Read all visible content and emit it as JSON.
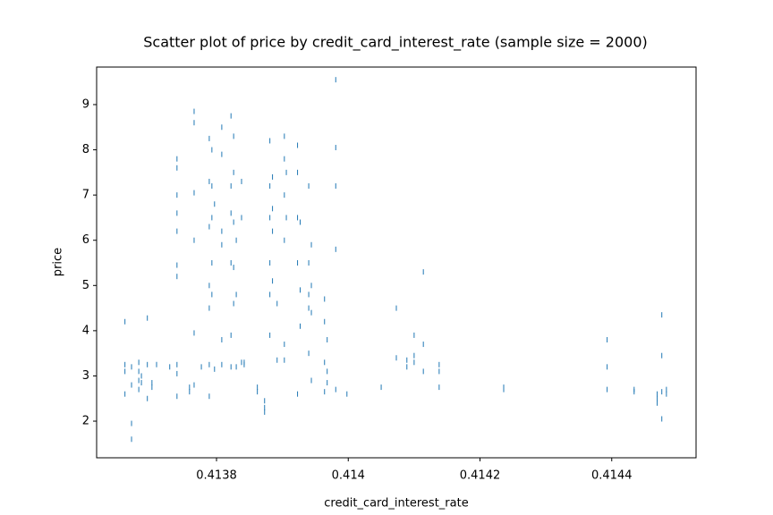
{
  "chart_data": {
    "type": "scatter",
    "title": "Scatter plot of price by credit_card_interest_rate (sample size = 2000)",
    "x_label": "credit_card_interest_rate",
    "y_label": "price",
    "color": "#1f77b4",
    "xlim": [
      0.413618,
      0.414528
    ],
    "ylim": [
      1.19,
      9.83
    ],
    "xticks": [
      0.4138,
      0.414,
      0.4142,
      0.4144
    ],
    "yticks": [
      2,
      3,
      4,
      5,
      6,
      7,
      8,
      9
    ],
    "x": [
      0.413661,
      0.413661,
      0.413661,
      0.413661,
      0.413671,
      0.413671,
      0.413671,
      0.413671,
      0.413682,
      0.413682,
      0.413682,
      0.413682,
      0.413686,
      0.413686,
      0.413695,
      0.413695,
      0.413695,
      0.413702,
      0.413702,
      0.413709,
      0.413729,
      0.41374,
      0.41374,
      0.41374,
      0.41374,
      0.41374,
      0.41374,
      0.41374,
      0.41374,
      0.41374,
      0.41374,
      0.413759,
      0.413759,
      0.413766,
      0.413766,
      0.413766,
      0.413766,
      0.413766,
      0.413766,
      0.413777,
      0.413789,
      0.413789,
      0.413789,
      0.413789,
      0.413789,
      0.413789,
      0.413789,
      0.413793,
      0.413793,
      0.413793,
      0.413793,
      0.413793,
      0.413797,
      0.413797,
      0.413808,
      0.413808,
      0.413808,
      0.413808,
      0.413808,
      0.413808,
      0.413822,
      0.413822,
      0.413822,
      0.413822,
      0.413822,
      0.413822,
      0.413826,
      0.413826,
      0.413826,
      0.413826,
      0.413826,
      0.41383,
      0.41383,
      0.41383,
      0.413838,
      0.413838,
      0.413838,
      0.413842,
      0.413842,
      0.413862,
      0.413862,
      0.413873,
      0.413873,
      0.413873,
      0.413881,
      0.413881,
      0.413881,
      0.413881,
      0.413881,
      0.413881,
      0.413885,
      0.413885,
      0.413885,
      0.413885,
      0.413892,
      0.413892,
      0.413903,
      0.413903,
      0.413903,
      0.413903,
      0.413903,
      0.413903,
      0.413906,
      0.413906,
      0.413923,
      0.413923,
      0.413923,
      0.413923,
      0.413923,
      0.413927,
      0.413927,
      0.413927,
      0.41394,
      0.41394,
      0.41394,
      0.41394,
      0.41394,
      0.413944,
      0.413944,
      0.413944,
      0.413944,
      0.413964,
      0.413964,
      0.413964,
      0.413964,
      0.413968,
      0.413968,
      0.413968,
      0.413981,
      0.413981,
      0.413981,
      0.413981,
      0.413981,
      0.413998,
      0.41405,
      0.414073,
      0.414073,
      0.414089,
      0.414089,
      0.4141,
      0.4141,
      0.4141,
      0.414114,
      0.414114,
      0.414114,
      0.414138,
      0.414138,
      0.414138,
      0.414236,
      0.414236,
      0.414393,
      0.414393,
      0.414393,
      0.414434,
      0.414434,
      0.414469,
      0.414469,
      0.414469,
      0.414476,
      0.414476,
      0.414476,
      0.414476,
      0.414483,
      0.414483
    ],
    "values": [
      3.25,
      3.1,
      2.6,
      4.2,
      3.2,
      2.8,
      1.95,
      1.6,
      3.1,
      2.9,
      2.7,
      3.3,
      3.0,
      2.85,
      4.28,
      3.25,
      2.5,
      2.75,
      2.85,
      3.25,
      3.2,
      3.25,
      5.2,
      5.45,
      6.2,
      6.6,
      7.0,
      7.6,
      7.8,
      3.05,
      2.55,
      2.65,
      2.75,
      2.8,
      3.95,
      6.0,
      7.05,
      8.6,
      8.85,
      3.2,
      3.25,
      4.5,
      5.0,
      6.3,
      7.3,
      8.25,
      2.55,
      4.8,
      5.5,
      6.5,
      7.2,
      8.0,
      3.15,
      6.8,
      3.8,
      5.9,
      6.2,
      7.9,
      8.5,
      3.25,
      3.2,
      3.9,
      5.5,
      6.6,
      7.2,
      8.75,
      4.6,
      5.4,
      6.4,
      7.5,
      8.3,
      3.2,
      4.8,
      6.0,
      3.3,
      6.5,
      7.3,
      3.3,
      3.25,
      2.75,
      2.65,
      2.3,
      2.2,
      2.45,
      3.9,
      4.8,
      5.5,
      6.5,
      7.2,
      8.2,
      5.1,
      6.2,
      6.7,
      7.4,
      3.35,
      4.6,
      3.35,
      3.7,
      6.0,
      7.0,
      7.8,
      8.3,
      6.5,
      7.5,
      5.5,
      6.5,
      7.5,
      8.1,
      2.6,
      4.9,
      6.4,
      4.1,
      4.8,
      4.5,
      5.5,
      7.2,
      3.5,
      4.4,
      5.0,
      5.9,
      2.9,
      4.7,
      4.2,
      3.3,
      2.65,
      3.1,
      3.8,
      2.85,
      9.55,
      8.05,
      7.2,
      5.8,
      2.7,
      2.6,
      2.75,
      3.4,
      4.5,
      3.2,
      3.35,
      3.45,
      3.3,
      3.9,
      5.3,
      3.7,
      3.1,
      3.25,
      3.1,
      2.75,
      2.7,
      2.75,
      3.8,
      3.2,
      2.7,
      2.65,
      2.7,
      2.5,
      2.6,
      2.4,
      4.35,
      3.45,
      2.65,
      2.05,
      2.7,
      2.6
    ]
  }
}
